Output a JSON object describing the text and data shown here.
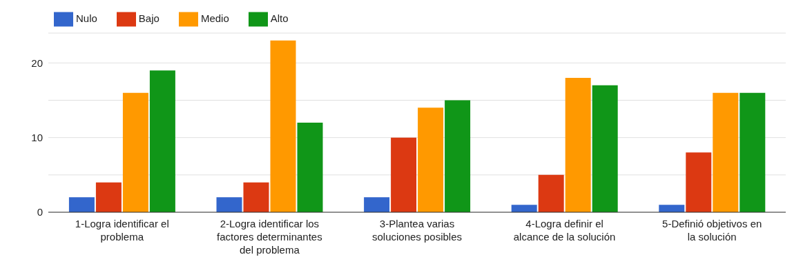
{
  "chart_data": {
    "type": "bar",
    "categories": [
      "1-Logra identificar el problema",
      "2-Logra identificar los factores determinantes del problema",
      "3-Plantea varias soluciones posibles",
      "4-Logra definir el alcance de la solución",
      "5-Definió objetivos en la solución"
    ],
    "series": [
      {
        "name": "Nulo",
        "color": "#3366cc",
        "values": [
          2,
          2,
          2,
          1,
          1
        ]
      },
      {
        "name": "Bajo",
        "color": "#dc3912",
        "values": [
          4,
          4,
          10,
          5,
          8
        ]
      },
      {
        "name": "Medio",
        "color": "#ff9900",
        "values": [
          16,
          23,
          14,
          18,
          16
        ]
      },
      {
        "name": "Alto",
        "color": "#109618",
        "values": [
          19,
          12,
          15,
          17,
          16
        ]
      }
    ],
    "ylim": [
      0,
      24
    ],
    "yticks": [
      0,
      {
        "value": 5,
        "label": null
      },
      10,
      {
        "value": 15,
        "label": null
      },
      20
    ],
    "grid": "y",
    "legend": "top left"
  }
}
